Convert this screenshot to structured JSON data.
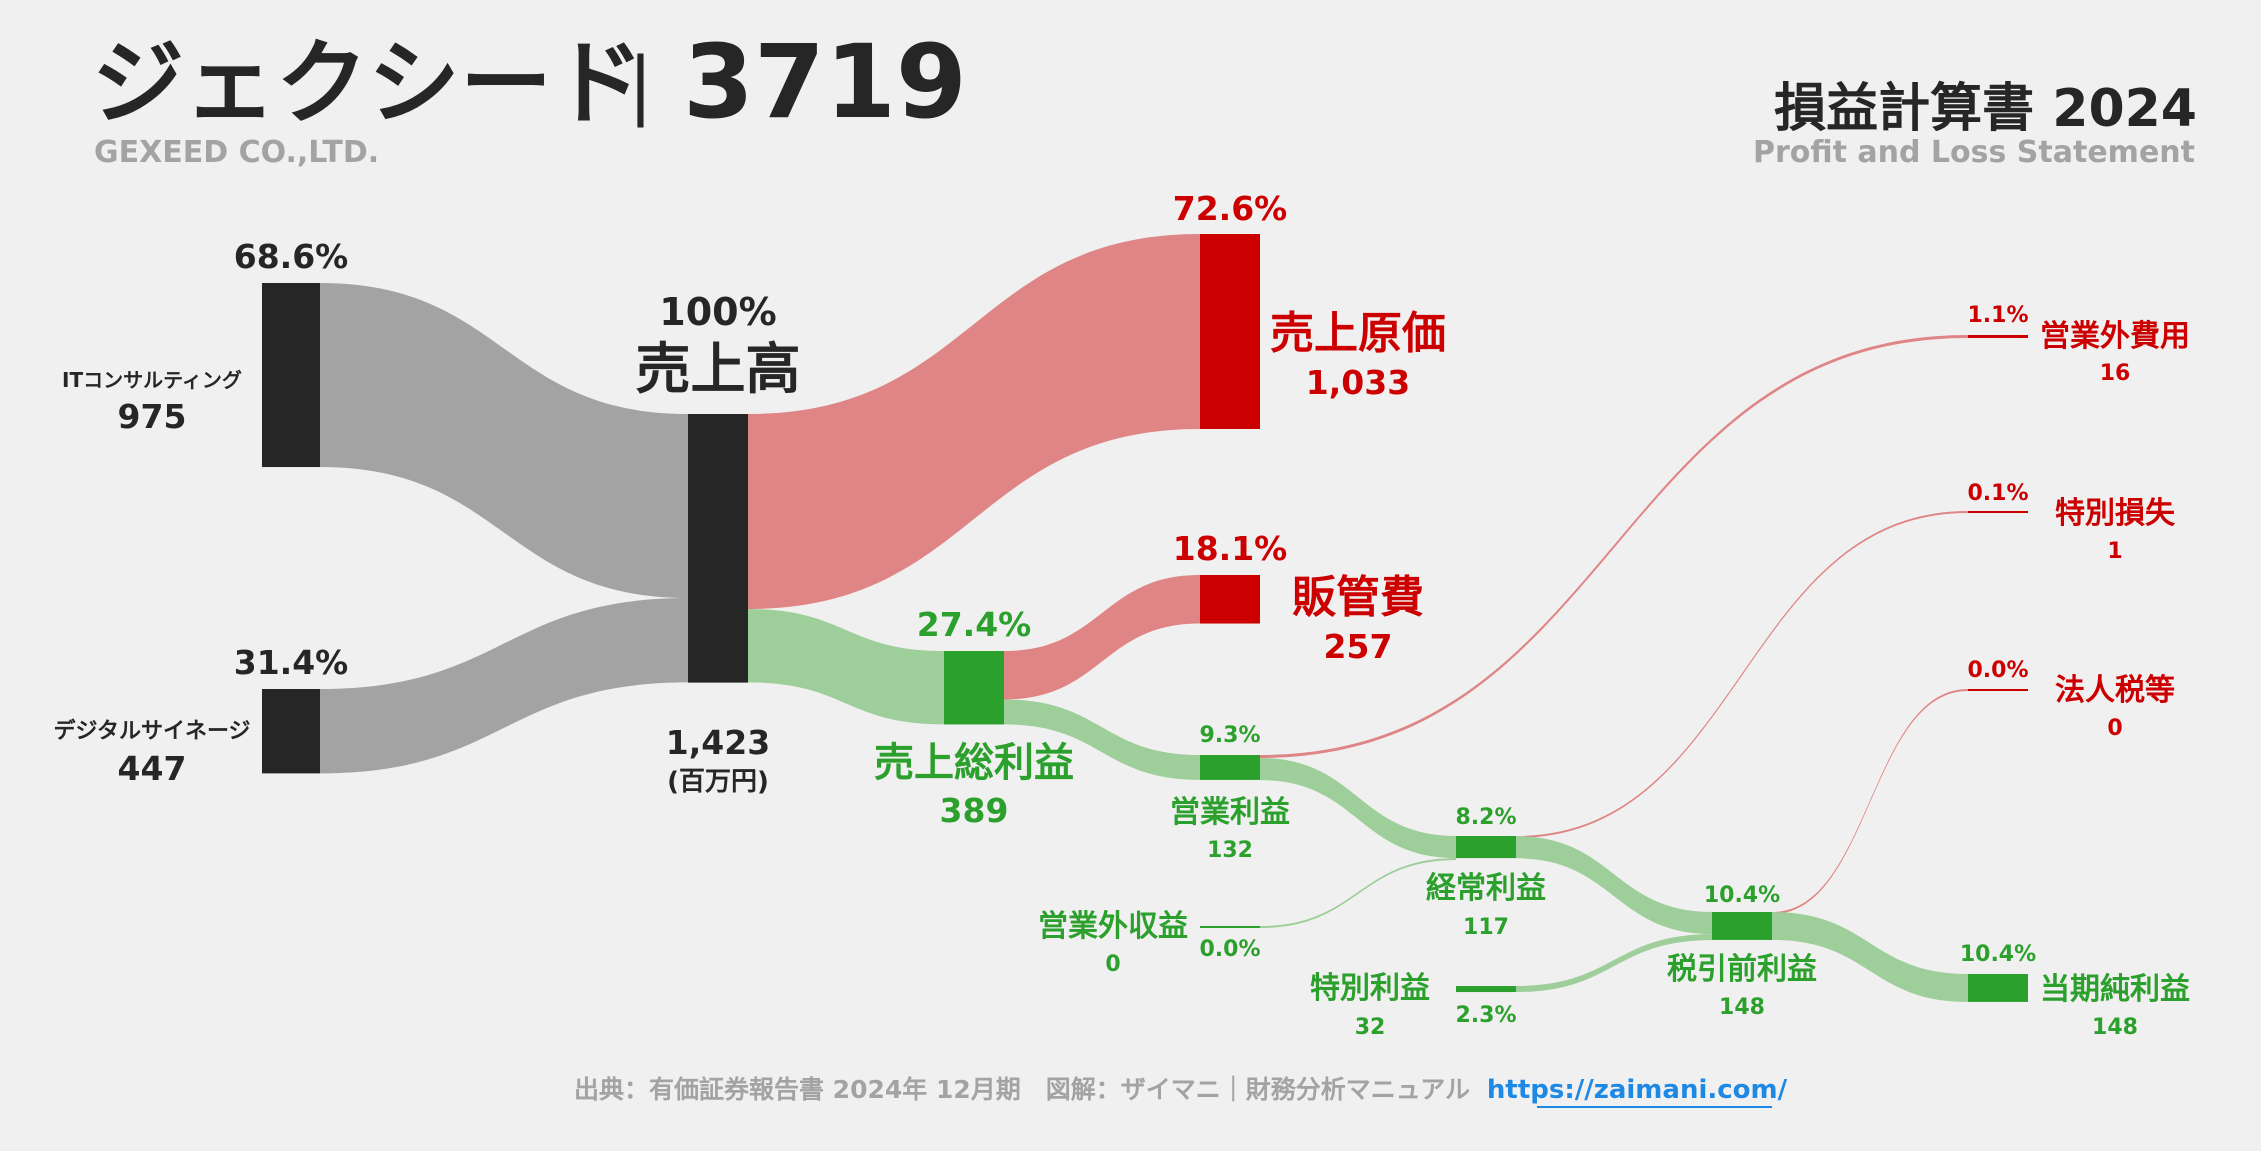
{
  "header": {
    "company_name": "ジェクシード",
    "separator": "|",
    "ticker": "3719",
    "company_en": "GEXEED CO.,LTD.",
    "statement_title": "損益計算書 2024",
    "statement_subtitle": "Profit and Loss Statement"
  },
  "footer": {
    "source": "出典：有価証券報告書 2024年 12月期　図解：ザイマニ｜財務分析マニュアル",
    "url": "https://zaimani.com/"
  },
  "colors": {
    "background": "#f0f0f0",
    "dark": "#262626",
    "gray_flow": "#a3a3a3",
    "cost_red": "#cc0000",
    "cost_flow": "#e08585",
    "profit_green": "#2ca02c",
    "profit_flow": "#9ecf9a",
    "muted_text": "#a3a3a3",
    "link": "#1e88e5"
  },
  "chart_data": {
    "type": "sankey",
    "unit": "(百万円)",
    "nodes": [
      {
        "id": "it",
        "name": "ITコンサルティング",
        "value": "975",
        "pct": "68.6%",
        "kind": "segment"
      },
      {
        "id": "digital",
        "name": "デジタルサイネージ",
        "value": "447",
        "pct": "31.4%",
        "kind": "segment"
      },
      {
        "id": "revenue",
        "name": "売上高",
        "value": "1,423",
        "pct": "100%",
        "kind": "total"
      },
      {
        "id": "cogs",
        "name": "売上原価",
        "value": "1,033",
        "pct": "72.6%",
        "kind": "cost"
      },
      {
        "id": "sga",
        "name": "販管費",
        "value": "257",
        "pct": "18.1%",
        "kind": "cost"
      },
      {
        "id": "gross",
        "name": "売上総利益",
        "value": "389",
        "pct": "27.4%",
        "kind": "profit"
      },
      {
        "id": "op",
        "name": "営業利益",
        "value": "132",
        "pct": "9.3%",
        "kind": "profit"
      },
      {
        "id": "nonop_inc",
        "name": "営業外収益",
        "value": "0",
        "pct": "0.0%",
        "kind": "profit"
      },
      {
        "id": "nonop_exp",
        "name": "営業外費用",
        "value": "16",
        "pct": "1.1%",
        "kind": "cost"
      },
      {
        "id": "ordinary",
        "name": "経常利益",
        "value": "117",
        "pct": "8.2%",
        "kind": "profit"
      },
      {
        "id": "sp_gain",
        "name": "特別利益",
        "value": "32",
        "pct": "2.3%",
        "kind": "profit"
      },
      {
        "id": "sp_loss",
        "name": "特別損失",
        "value": "1",
        "pct": "0.1%",
        "kind": "cost"
      },
      {
        "id": "pretax",
        "name": "税引前利益",
        "value": "148",
        "pct": "10.4%",
        "kind": "profit"
      },
      {
        "id": "tax",
        "name": "法人税等",
        "value": "0",
        "pct": "0.0%",
        "kind": "cost"
      },
      {
        "id": "net",
        "name": "当期純利益",
        "value": "148",
        "pct": "10.4%",
        "kind": "profit"
      }
    ],
    "links": [
      {
        "from": "it",
        "to": "revenue",
        "value": 975
      },
      {
        "from": "digital",
        "to": "revenue",
        "value": 447
      },
      {
        "from": "revenue",
        "to": "cogs",
        "value": 1033
      },
      {
        "from": "revenue",
        "to": "gross",
        "value": 389
      },
      {
        "from": "gross",
        "to": "sga",
        "value": 257
      },
      {
        "from": "gross",
        "to": "op",
        "value": 132
      },
      {
        "from": "op",
        "to": "nonop_exp",
        "value": 16
      },
      {
        "from": "op",
        "to": "ordinary",
        "value": 117
      },
      {
        "from": "nonop_inc",
        "to": "ordinary",
        "value": 0
      },
      {
        "from": "ordinary",
        "to": "sp_loss",
        "value": 1
      },
      {
        "from": "ordinary",
        "to": "pretax",
        "value": 117
      },
      {
        "from": "sp_gain",
        "to": "pretax",
        "value": 32
      },
      {
        "from": "pretax",
        "to": "tax",
        "value": 0
      },
      {
        "from": "pretax",
        "to": "net",
        "value": 148
      }
    ]
  }
}
